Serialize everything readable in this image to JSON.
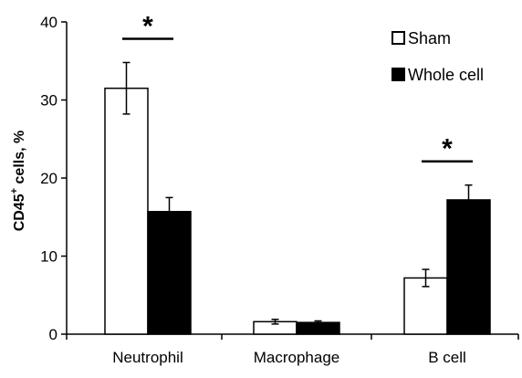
{
  "chart_data": {
    "type": "bar",
    "categories": [
      "Neutrophil",
      "Macrophage",
      "B cell"
    ],
    "series": [
      {
        "name": "Sham",
        "values": [
          31.5,
          1.6,
          7.2
        ],
        "errors": [
          3.3,
          0.3,
          1.1
        ],
        "fill": "#ffffff"
      },
      {
        "name": "Whole cell",
        "values": [
          15.7,
          1.5,
          17.2
        ],
        "errors": [
          1.8,
          0.2,
          1.9
        ],
        "fill": "#000000"
      }
    ],
    "ylabel_main": "CD45",
    "ylabel_sup": "+",
    "ylabel_rest": " cells, %",
    "ylim": [
      0,
      40
    ],
    "yticks": [
      "0",
      "10",
      "20",
      "30",
      "40"
    ],
    "significance": [
      {
        "category_index": 0,
        "symbol": "*"
      },
      {
        "category_index": 2,
        "symbol": "*"
      }
    ],
    "legend_position": "top-right",
    "grid": false
  }
}
